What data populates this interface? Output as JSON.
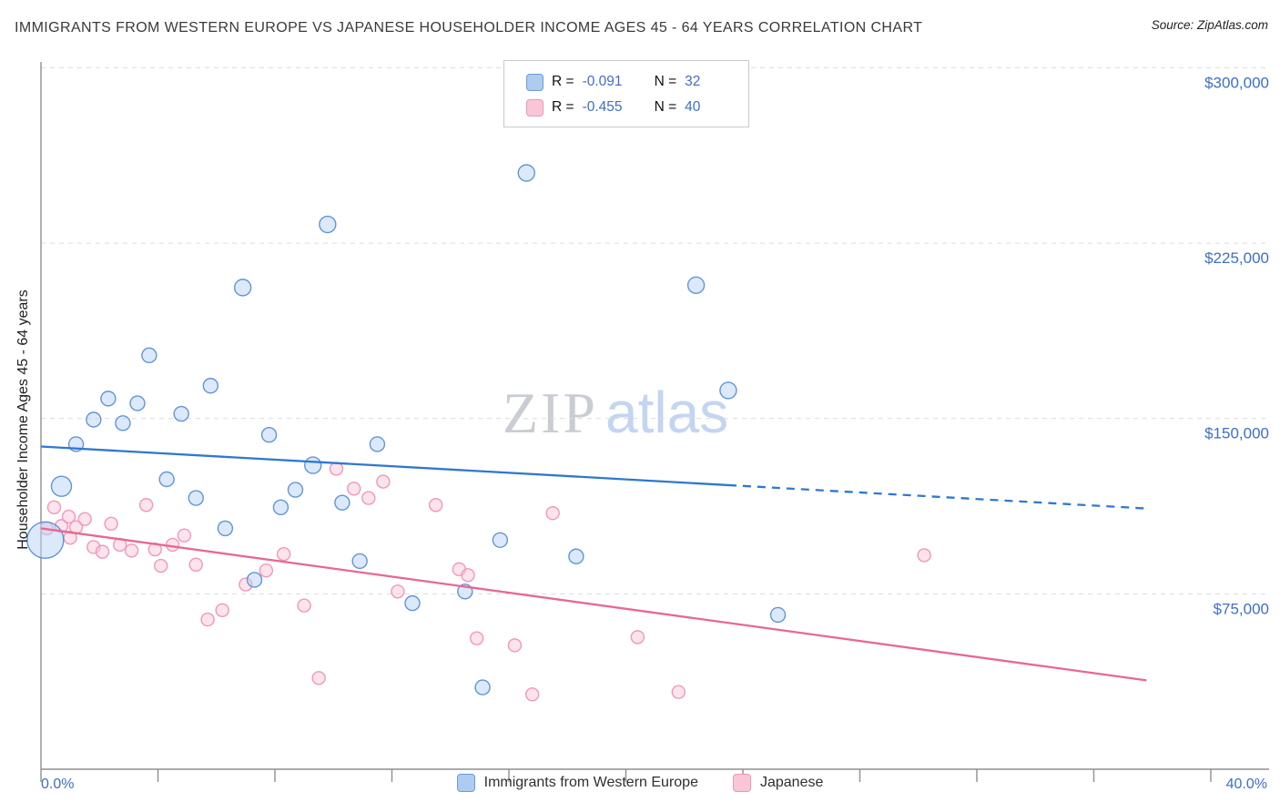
{
  "header": {
    "source": "Source: ZipAtlas.com"
  },
  "watermark": {
    "zip": "ZIP",
    "atlas": "atlas"
  },
  "chart_data": {
    "type": "scatter",
    "title": "IMMIGRANTS FROM WESTERN EUROPE VS JAPANESE HOUSEHOLDER INCOME AGES 45 - 64 YEARS CORRELATION CHART",
    "xlabel": "",
    "ylabel": "Householder Income Ages 45 - 64 years",
    "xlim": [
      0,
      40
    ],
    "ylim": [
      0,
      302500
    ],
    "x_axis": {
      "min_label": "0.0%",
      "max_label": "40.0%",
      "tick_percents": [
        0,
        4,
        8,
        12,
        16,
        20,
        24,
        28,
        32,
        36,
        40
      ]
    },
    "y_gridlines": [
      {
        "value": 300000,
        "label": "$300,000"
      },
      {
        "value": 225000,
        "label": "$225,000"
      },
      {
        "value": 150000,
        "label": "$150,000"
      },
      {
        "value": 75000,
        "label": "$75,000"
      }
    ],
    "grid": true,
    "legend_position": "top-center",
    "series": [
      {
        "name": "Immigrants from Western Europe",
        "r": -0.091,
        "n": 32,
        "legend": {
          "r_label": "R =",
          "r_value": "-0.091",
          "n_label": "N =",
          "n_value": "32"
        },
        "fill": "#b7d3f6",
        "stroke": "#5b8fd4",
        "line_color": "#2e78d2",
        "points": [
          [
            0.15,
            98000,
            20
          ],
          [
            0.7,
            121000,
            11
          ],
          [
            1.2,
            139000,
            8
          ],
          [
            1.8,
            149500,
            8
          ],
          [
            2.3,
            158500,
            8
          ],
          [
            2.8,
            148000,
            8
          ],
          [
            3.3,
            156500,
            8
          ],
          [
            3.7,
            177000,
            8
          ],
          [
            4.3,
            124000,
            8
          ],
          [
            4.8,
            152000,
            8
          ],
          [
            5.3,
            116000,
            8
          ],
          [
            5.8,
            164000,
            8
          ],
          [
            6.3,
            103000,
            8
          ],
          [
            6.9,
            206000,
            9
          ],
          [
            7.3,
            81000,
            8
          ],
          [
            7.8,
            143000,
            8
          ],
          [
            8.2,
            112000,
            8
          ],
          [
            8.7,
            119500,
            8
          ],
          [
            9.3,
            130000,
            9
          ],
          [
            9.8,
            233000,
            9
          ],
          [
            10.3,
            114000,
            8
          ],
          [
            10.9,
            89000,
            8
          ],
          [
            11.5,
            139000,
            8
          ],
          [
            12.7,
            71000,
            8
          ],
          [
            14.5,
            76000,
            8
          ],
          [
            15.1,
            35000,
            8
          ],
          [
            15.7,
            98000,
            8
          ],
          [
            16.6,
            255000,
            9
          ],
          [
            18.3,
            91000,
            8
          ],
          [
            22.4,
            207000,
            9
          ],
          [
            23.5,
            162000,
            9
          ],
          [
            25.2,
            66000,
            8
          ]
        ],
        "trend": {
          "solid": [
            [
              0,
              138000
            ],
            [
              23.5,
              121500
            ]
          ],
          "dashed": [
            [
              23.5,
              121500
            ],
            [
              37.8,
              111500
            ]
          ]
        }
      },
      {
        "name": "Japanese",
        "r": -0.455,
        "n": 40,
        "legend": {
          "r_label": "R =",
          "r_value": "-0.455",
          "n_label": "N =",
          "n_value": "40"
        },
        "fill": "#f9c8d9",
        "stroke": "#ef93b5",
        "line_color": "#e8688f",
        "points": [
          [
            0.2,
            103000,
            7
          ],
          [
            0.45,
            112000,
            7
          ],
          [
            0.7,
            104000,
            7
          ],
          [
            0.95,
            108000,
            7
          ],
          [
            1.0,
            99000,
            7
          ],
          [
            1.2,
            103500,
            7
          ],
          [
            1.5,
            107000,
            7
          ],
          [
            1.8,
            95000,
            7
          ],
          [
            2.1,
            93000,
            7
          ],
          [
            2.4,
            105000,
            7
          ],
          [
            2.7,
            96000,
            7
          ],
          [
            3.1,
            93500,
            7
          ],
          [
            3.6,
            113000,
            7
          ],
          [
            3.9,
            94000,
            7
          ],
          [
            4.1,
            87000,
            7
          ],
          [
            4.5,
            96000,
            7
          ],
          [
            4.9,
            100000,
            7
          ],
          [
            5.3,
            87500,
            7
          ],
          [
            5.7,
            64000,
            7
          ],
          [
            6.2,
            68000,
            7
          ],
          [
            7.0,
            79000,
            7
          ],
          [
            7.7,
            85000,
            7
          ],
          [
            8.3,
            92000,
            7
          ],
          [
            9.0,
            70000,
            7
          ],
          [
            9.5,
            39000,
            7
          ],
          [
            10.1,
            128500,
            7
          ],
          [
            10.7,
            120000,
            7
          ],
          [
            11.2,
            116000,
            7
          ],
          [
            11.7,
            123000,
            7
          ],
          [
            12.2,
            76000,
            7
          ],
          [
            13.5,
            113000,
            7
          ],
          [
            14.3,
            85500,
            7
          ],
          [
            14.6,
            83000,
            7
          ],
          [
            14.9,
            56000,
            7
          ],
          [
            16.2,
            53000,
            7
          ],
          [
            16.8,
            32000,
            7
          ],
          [
            17.5,
            109500,
            7
          ],
          [
            20.4,
            56500,
            7
          ],
          [
            21.8,
            33000,
            7
          ],
          [
            30.2,
            91500,
            7
          ]
        ],
        "trend": {
          "solid": [
            [
              0,
              103000
            ],
            [
              37.8,
              38000
            ]
          ]
        }
      }
    ]
  }
}
